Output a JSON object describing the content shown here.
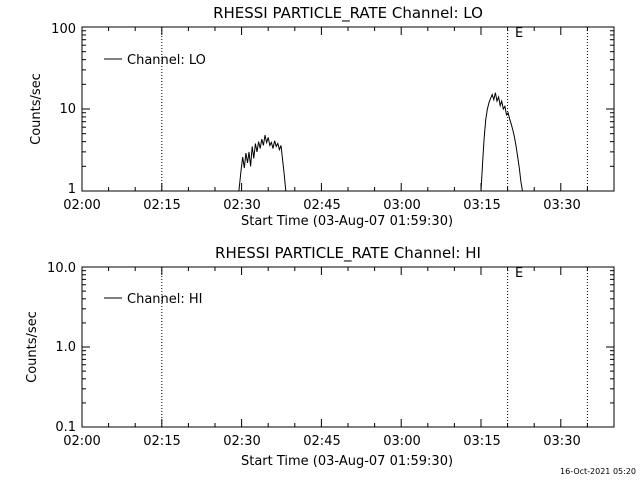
{
  "footer": {
    "timestamp": "16-Oct-2021 05:20"
  },
  "chart_data": [
    {
      "type": "line",
      "title": "RHESSI PARTICLE_RATE Channel: LO",
      "xlabel": "Start Time (03-Aug-07 01:59:30)",
      "ylabel": "Counts/sec",
      "yscale": "log",
      "ylim": [
        1,
        100
      ],
      "xlim_minutes": [
        0,
        100
      ],
      "xtick_labels": [
        "02:00",
        "02:15",
        "02:30",
        "02:45",
        "03:00",
        "03:15",
        "03:30"
      ],
      "ytick_labels": [
        "1",
        "10",
        "100"
      ],
      "grid": false,
      "legend": {
        "position": "top-left",
        "entries": [
          "Channel: LO"
        ]
      },
      "markers": [
        {
          "label": "",
          "x_min": 15
        },
        {
          "label": "E",
          "x_min": 80
        },
        {
          "label": "",
          "x_min": 95
        }
      ],
      "series": [
        {
          "name": "Channel: LO",
          "x_min": [
            29.5,
            29.9,
            30.2,
            30.5,
            30.8,
            31.1,
            31.4,
            31.7,
            32.0,
            32.3,
            32.6,
            32.9,
            33.2,
            33.5,
            33.8,
            34.1,
            34.4,
            34.7,
            35.0,
            35.3,
            35.6,
            35.9,
            36.2,
            36.5,
            36.8,
            37.1,
            37.4,
            37.7,
            38.0,
            38.3,
            75.0,
            75.3,
            75.6,
            75.9,
            76.2,
            76.5,
            76.8,
            77.1,
            77.4,
            77.7,
            78.0,
            78.3,
            78.6,
            78.9,
            79.2,
            79.5,
            79.8,
            80.1,
            80.4,
            80.7,
            81.0,
            81.3,
            81.6,
            81.9,
            82.2,
            82.5,
            82.8
          ],
          "y": [
            1.0,
            1.8,
            2.6,
            1.9,
            2.9,
            2.2,
            3.0,
            2.0,
            3.5,
            2.5,
            3.8,
            3.0,
            4.0,
            3.3,
            4.3,
            3.6,
            4.8,
            3.9,
            4.5,
            3.6,
            3.9,
            3.3,
            4.1,
            3.5,
            3.8,
            3.2,
            3.6,
            2.4,
            1.6,
            1.0,
            1.0,
            2.2,
            4.5,
            7.5,
            10.0,
            12.0,
            13.5,
            15.0,
            13.0,
            15.8,
            12.5,
            14.0,
            11.0,
            12.5,
            10.0,
            10.8,
            8.5,
            9.0,
            7.5,
            6.5,
            5.5,
            4.5,
            3.5,
            2.6,
            1.9,
            1.3,
            1.0
          ]
        }
      ]
    },
    {
      "type": "line",
      "title": "RHESSI PARTICLE_RATE Channel: HI",
      "xlabel": "Start Time (03-Aug-07 01:59:30)",
      "ylabel": "Counts/sec",
      "yscale": "log",
      "ylim": [
        0.1,
        10
      ],
      "xlim_minutes": [
        0,
        100
      ],
      "xtick_labels": [
        "02:00",
        "02:15",
        "02:30",
        "02:45",
        "03:00",
        "03:15",
        "03:30"
      ],
      "ytick_labels": [
        "0.1",
        "1.0",
        "10.0"
      ],
      "grid": false,
      "legend": {
        "position": "top-left",
        "entries": [
          "Channel: HI"
        ]
      },
      "markers": [
        {
          "label": "",
          "x_min": 15
        },
        {
          "label": "E",
          "x_min": 80
        },
        {
          "label": "",
          "x_min": 95
        }
      ],
      "series": [
        {
          "name": "Channel: HI",
          "x_min": [],
          "y": []
        }
      ]
    }
  ]
}
